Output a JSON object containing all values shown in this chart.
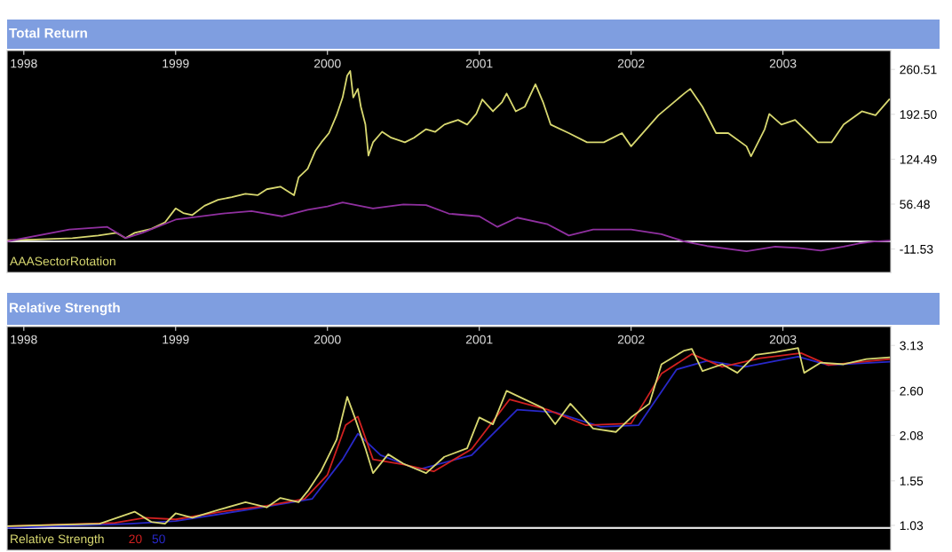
{
  "chart_data": [
    {
      "type": "line",
      "title": "Total Return",
      "xlim": [
        1997.89,
        2003.71
      ],
      "xticks": [
        1998,
        1999,
        2000,
        2001,
        2002,
        2003
      ],
      "ylim": [
        -47,
        289
      ],
      "yticks": [
        -11.53,
        56.48,
        124.49,
        {
          "value": 192.5,
          "label": "192.50"
        },
        260.51
      ],
      "grid": false,
      "legend": "bottom left",
      "ref_lines": [
        {
          "axis": "y",
          "value": 0,
          "color": "#e0e0e0"
        }
      ],
      "series": [
        {
          "name": "AAASectorRotation",
          "color": "#d8d870",
          "x": [
            1997.89,
            1998.08,
            1998.32,
            1998.49,
            1998.61,
            1998.67,
            1998.73,
            1998.84,
            1998.93,
            1999.0,
            1999.05,
            1999.11,
            1999.19,
            1999.28,
            1999.37,
            1999.46,
            1999.54,
            1999.6,
            1999.69,
            1999.78,
            1999.81,
            1999.87,
            1999.92,
            1999.96,
            2000.01,
            2000.06,
            2000.1,
            2000.13,
            2000.15,
            2000.17,
            2000.2,
            2000.22,
            2000.25,
            2000.27,
            2000.3,
            2000.36,
            2000.42,
            2000.51,
            2000.57,
            2000.65,
            2000.71,
            2000.77,
            2000.86,
            2000.92,
            2000.98,
            2001.02,
            2001.09,
            2001.15,
            2001.18,
            2001.24,
            2001.3,
            2001.37,
            2001.42,
            2001.47,
            2001.59,
            2001.71,
            2001.82,
            2001.94,
            2002.0,
            2002.18,
            2002.35,
            2002.39,
            2002.47,
            2002.56,
            2002.64,
            2002.76,
            2002.79,
            2002.88,
            2002.91,
            2002.99,
            2003.08,
            2003.17,
            2003.23,
            2003.32,
            2003.4,
            2003.52,
            2003.61,
            2003.7
          ],
          "values": [
            2,
            3,
            5,
            9,
            13,
            5,
            13,
            19,
            29,
            50,
            43,
            40,
            54,
            63,
            67,
            72,
            70,
            79,
            83,
            70,
            97,
            110,
            137,
            150,
            164,
            191,
            218,
            251,
            258,
            218,
            231,
            204,
            177,
            130,
            150,
            166,
            157,
            150,
            157,
            170,
            166,
            177,
            184,
            177,
            193,
            215,
            197,
            211,
            224,
            197,
            204,
            238,
            211,
            177,
            164,
            150,
            150,
            164,
            144,
            191,
            224,
            231,
            204,
            164,
            164,
            144,
            129,
            170,
            193,
            177,
            184,
            164,
            150,
            150,
            177,
            197,
            191,
            215
          ]
        },
        {
          "color": "#9030a0",
          "x": [
            1997.89,
            1998.3,
            1998.55,
            1998.67,
            1998.78,
            1999.0,
            1999.3,
            1999.5,
            1999.7,
            1999.87,
            2000.0,
            2000.1,
            2000.3,
            2000.5,
            2000.65,
            2000.8,
            2001.0,
            2001.12,
            2001.25,
            2001.45,
            2001.59,
            2001.75,
            2002.0,
            2002.2,
            2002.35,
            2002.5,
            2002.76,
            2002.95,
            2003.1,
            2003.25,
            2003.4,
            2003.5,
            2003.6,
            2003.7
          ],
          "values": [
            0,
            18,
            22,
            5,
            13,
            33,
            42,
            46,
            38,
            48,
            53,
            59,
            50,
            56,
            55,
            42,
            38,
            22,
            36,
            26,
            9,
            18,
            18,
            11,
            0,
            -7,
            -15,
            -8,
            -10,
            -14,
            -8,
            -3,
            0,
            1
          ]
        }
      ]
    },
    {
      "type": "line",
      "title": "Relative Strength",
      "xlim": [
        1997.89,
        2003.71
      ],
      "xticks": [
        1998,
        1999,
        2000,
        2001,
        2002,
        2003
      ],
      "ylim": [
        0.74,
        3.35
      ],
      "yticks": [
        1.03,
        1.55,
        2.08,
        {
          "value": 2.6,
          "label": "2.60"
        },
        3.13
      ],
      "grid": false,
      "legend": "bottom left",
      "ref_lines": [
        {
          "axis": "y",
          "value": 1,
          "color": "#e0e0e0"
        }
      ],
      "series": [
        {
          "name": "50",
          "color": "#2828c8",
          "x": [
            1997.89,
            1998.7,
            1999.0,
            1999.5,
            1999.9,
            2000.1,
            2000.2,
            2000.35,
            2000.6,
            2000.95,
            2001.25,
            2001.5,
            2001.8,
            2002.05,
            2002.3,
            2002.5,
            2002.75,
            2003.1,
            2003.3,
            2003.7
          ],
          "values": [
            1.0,
            1.05,
            1.08,
            1.22,
            1.34,
            1.8,
            2.1,
            1.85,
            1.68,
            1.85,
            2.38,
            2.35,
            2.18,
            2.2,
            2.85,
            2.95,
            2.88,
            3.0,
            2.9,
            2.94
          ]
        },
        {
          "name": "20",
          "color": "#d02020",
          "x": [
            1997.89,
            1998.6,
            1998.8,
            1999.0,
            1999.3,
            1999.6,
            1999.85,
            2000.0,
            2000.12,
            2000.2,
            2000.3,
            2000.5,
            2000.7,
            2000.95,
            2001.2,
            2001.45,
            2001.7,
            2002.0,
            2002.2,
            2002.4,
            2002.6,
            2002.85,
            2003.12,
            2003.3,
            2003.7
          ],
          "values": [
            1.02,
            1.06,
            1.12,
            1.1,
            1.19,
            1.26,
            1.34,
            1.62,
            2.2,
            2.3,
            1.8,
            1.74,
            1.66,
            1.92,
            2.5,
            2.38,
            2.2,
            2.22,
            2.8,
            3.03,
            2.88,
            2.98,
            3.04,
            2.9,
            2.97
          ]
        },
        {
          "name": "Relative Strength",
          "color": "#d8d870",
          "x": [
            1997.89,
            1998.5,
            1998.73,
            1998.84,
            1998.93,
            1999.0,
            1999.11,
            1999.28,
            1999.46,
            1999.6,
            1999.69,
            1999.81,
            1999.87,
            1999.96,
            2000.06,
            2000.13,
            2000.18,
            2000.25,
            2000.3,
            2000.4,
            2000.5,
            2000.65,
            2000.77,
            2000.92,
            2001.0,
            2001.09,
            2001.18,
            2001.3,
            2001.42,
            2001.5,
            2001.6,
            2001.75,
            2001.9,
            2002.0,
            2002.12,
            2002.2,
            2002.35,
            2002.4,
            2002.47,
            2002.6,
            2002.7,
            2002.82,
            2002.95,
            2003.1,
            2003.14,
            2003.25,
            2003.4,
            2003.55,
            2003.7
          ],
          "values": [
            1.02,
            1.05,
            1.19,
            1.07,
            1.05,
            1.17,
            1.12,
            1.21,
            1.3,
            1.24,
            1.35,
            1.3,
            1.43,
            1.67,
            2.03,
            2.53,
            2.29,
            1.93,
            1.64,
            1.86,
            1.75,
            1.64,
            1.83,
            1.93,
            2.29,
            2.21,
            2.6,
            2.5,
            2.4,
            2.21,
            2.45,
            2.16,
            2.12,
            2.29,
            2.45,
            2.91,
            3.07,
            3.09,
            2.83,
            2.91,
            2.81,
            3.02,
            3.05,
            3.1,
            2.81,
            2.93,
            2.91,
            2.97,
            2.99
          ]
        }
      ]
    }
  ]
}
